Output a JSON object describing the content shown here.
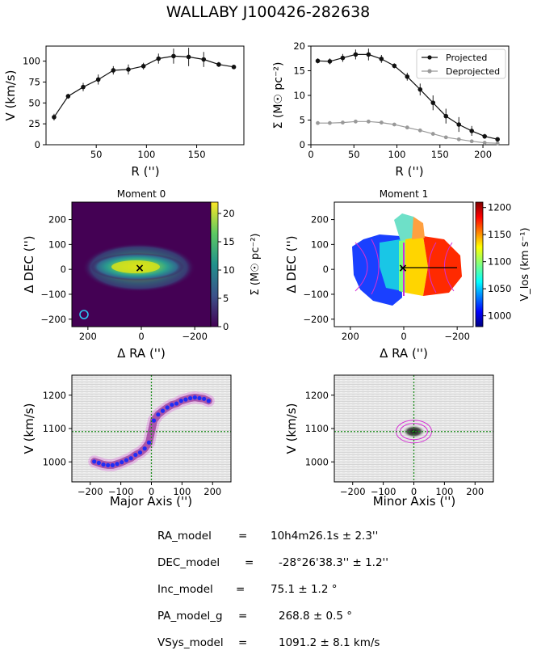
{
  "title": "WALLABY J100426-282638",
  "colors": {
    "projected": "#111111",
    "deprojected": "#999999",
    "errorbar": "#222222",
    "model": "#1f2df5",
    "contour": "#d42fd4",
    "center_line": "#1a8a1a"
  },
  "chart_data": [
    {
      "id": "rotation_curve",
      "type": "line",
      "title": "",
      "xlabel": "R ('')",
      "ylabel": "V (km/s)",
      "xlim": [
        0,
        197
      ],
      "ylim": [
        0,
        118
      ],
      "xticks": [
        "50",
        "100",
        "150"
      ],
      "xtick_values": [
        50,
        100,
        150
      ],
      "yticks": [
        "0",
        "25",
        "50",
        "75",
        "100"
      ],
      "ytick_values": [
        0,
        25,
        50,
        75,
        100
      ],
      "series": [
        {
          "name": "Rotation",
          "x": [
            8,
            22,
            37,
            52,
            67,
            82,
            97,
            112,
            127,
            142,
            157,
            172,
            187
          ],
          "values": [
            33,
            58,
            69,
            78,
            89,
            90,
            94,
            103,
            106,
            105,
            102,
            96,
            93
          ],
          "errors": [
            4,
            3,
            5,
            6,
            5,
            6,
            4,
            6,
            9,
            11,
            9,
            3,
            2
          ]
        }
      ]
    },
    {
      "id": "surface_density",
      "type": "line",
      "title": "",
      "xlabel": "R ('')",
      "ylabel": "Σ (M☉ pc⁻²)",
      "xlim": [
        0,
        230
      ],
      "ylim": [
        0,
        20
      ],
      "xticks": [
        "0",
        "50",
        "100",
        "150",
        "200"
      ],
      "xtick_values": [
        0,
        50,
        100,
        150,
        200
      ],
      "yticks": [
        "0",
        "5",
        "10",
        "15",
        "20"
      ],
      "ytick_values": [
        0,
        5,
        10,
        15,
        20
      ],
      "legend": [
        "Projected",
        "Deprojected"
      ],
      "legend_position": "top-right",
      "series": [
        {
          "name": "Projected",
          "x": [
            8,
            22,
            37,
            52,
            67,
            82,
            97,
            112,
            127,
            142,
            157,
            172,
            187,
            202,
            217
          ],
          "values": [
            17.0,
            16.9,
            17.6,
            18.3,
            18.3,
            17.4,
            16.0,
            13.8,
            11.2,
            8.5,
            5.8,
            4.1,
            2.8,
            1.7,
            1.1
          ],
          "errors": [
            0.5,
            0.6,
            0.8,
            1.0,
            1.2,
            0.8,
            0.5,
            0.8,
            1.2,
            1.5,
            1.5,
            1.5,
            1.0,
            0.5,
            0.3
          ]
        },
        {
          "name": "Deprojected",
          "x": [
            8,
            22,
            37,
            52,
            67,
            82,
            97,
            112,
            127,
            142,
            157,
            172,
            187,
            202,
            217
          ],
          "values": [
            4.4,
            4.4,
            4.5,
            4.7,
            4.7,
            4.5,
            4.1,
            3.5,
            2.9,
            2.2,
            1.5,
            1.1,
            0.7,
            0.4,
            0.3
          ]
        }
      ]
    },
    {
      "id": "moment0",
      "type": "heatmap",
      "title": "Moment 0",
      "xlabel": "Δ RA ('')",
      "ylabel": "Δ DEC ('')",
      "xlim": [
        260,
        -260
      ],
      "ylim": [
        -230,
        270
      ],
      "xticks": [
        "200",
        "0",
        "−200"
      ],
      "xtick_values": [
        200,
        0,
        -200
      ],
      "yticks": [
        "−200",
        "−100",
        "0",
        "100",
        "200"
      ],
      "ytick_values": [
        -200,
        -100,
        0,
        100,
        200
      ],
      "colorbar_label": "Σ (M☉ pc⁻²)",
      "colorbar_ticks": [
        "0",
        "5",
        "10",
        "15",
        "20"
      ],
      "colorbar_values": [
        0,
        5,
        10,
        15,
        20
      ],
      "colorbar_range": [
        0,
        22
      ],
      "center": [
        0,
        0
      ],
      "center_marker": "×",
      "beam_position": [
        215,
        -180
      ]
    },
    {
      "id": "moment1",
      "type": "heatmap",
      "title": "Moment 1",
      "xlabel": "Δ RA ('')",
      "ylabel": "Δ DEC ('')",
      "xlim": [
        260,
        -260
      ],
      "ylim": [
        -230,
        270
      ],
      "xticks": [
        "200",
        "0",
        "−200"
      ],
      "xtick_values": [
        200,
        0,
        -200
      ],
      "yticks": [
        "−200",
        "−100",
        "0",
        "100",
        "200"
      ],
      "ytick_values": [
        -200,
        -100,
        0,
        100,
        200
      ],
      "colorbar_label": "V_los (km s⁻¹)",
      "colorbar_ticks": [
        "1000",
        "1050",
        "1100",
        "1150",
        "1200"
      ],
      "colorbar_values": [
        1000,
        1050,
        1100,
        1150,
        1200
      ],
      "colorbar_range": [
        980,
        1210
      ],
      "center_marker": "×"
    },
    {
      "id": "major_axis_pv",
      "type": "scatter",
      "title": "",
      "xlabel": "Major Axis ('')",
      "ylabel": "V (km/s)",
      "xlim": [
        -260,
        260
      ],
      "ylim": [
        940,
        1260
      ],
      "xticks": [
        "−200",
        "−100",
        "0",
        "100",
        "200"
      ],
      "xtick_values": [
        -200,
        -100,
        0,
        100,
        200
      ],
      "yticks": [
        "1000",
        "1100",
        "1200"
      ],
      "ytick_values": [
        1000,
        1100,
        1200
      ],
      "vsys": 1091,
      "series": [
        {
          "name": "Model",
          "x": [
            -187,
            -172,
            -157,
            -142,
            -127,
            -112,
            -97,
            -82,
            -67,
            -52,
            -37,
            -22,
            -8,
            8,
            22,
            37,
            52,
            67,
            82,
            97,
            112,
            127,
            142,
            157,
            172,
            187
          ],
          "values": [
            1001,
            997,
            992,
            990,
            990,
            994,
            999,
            1005,
            1011,
            1021,
            1028,
            1040,
            1058,
            1124,
            1142,
            1153,
            1163,
            1171,
            1175,
            1183,
            1187,
            1191,
            1193,
            1191,
            1189,
            1183
          ]
        }
      ]
    },
    {
      "id": "minor_axis_pv",
      "type": "scatter",
      "title": "",
      "xlabel": "Minor Axis ('')",
      "ylabel": "V (km/s)",
      "xlim": [
        -260,
        260
      ],
      "ylim": [
        940,
        1260
      ],
      "xticks": [
        "−200",
        "−100",
        "0",
        "100",
        "200"
      ],
      "xtick_values": [
        -200,
        -100,
        0,
        100,
        200
      ],
      "yticks": [
        "1000",
        "1100",
        "1200"
      ],
      "ytick_values": [
        1000,
        1100,
        1200
      ],
      "vsys": 1091
    }
  ],
  "params": [
    {
      "key": "RA_model",
      "eq": "=",
      "value": "10h4m26.1s ± 2.3''"
    },
    {
      "key": "DEC_model",
      "eq": "=",
      "value": "-28°26'38.3'' ± 1.2''"
    },
    {
      "key": "Inc_model",
      "eq": "=",
      "value": "75.1 ± 1.2 °"
    },
    {
      "key": "PA_model_g",
      "eq": "=",
      "value": "268.8 ± 0.5 °"
    },
    {
      "key": "VSys_model",
      "eq": "=",
      "value": "1091.2 ± 8.1 km/s"
    }
  ]
}
